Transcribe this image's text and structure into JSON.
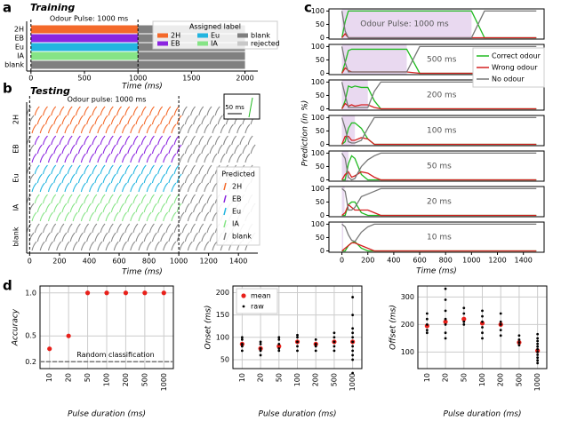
{
  "chart_data": [
    {
      "type": "bar",
      "panel": "a",
      "title": "Training",
      "annotation": "Odour Pulse: 1000 ms",
      "categories": [
        "2H",
        "EB",
        "Eu",
        "IA",
        "blank"
      ],
      "label_duration": [
        1000,
        1000,
        1000,
        1000,
        0
      ],
      "blank_duration": [
        1000,
        1000,
        1000,
        1000,
        2000
      ],
      "colors": [
        "#f4692a",
        "#8b25e0",
        "#22b5e0",
        "#86e486",
        "#7f7f7f"
      ],
      "blank_color": "#808080",
      "pulse_window": [
        0,
        1000
      ],
      "xlim": [
        -40,
        2120
      ],
      "xticks": [
        0,
        500,
        1000,
        1500,
        2000
      ],
      "xlabel": "Time (ms)",
      "legend": {
        "title": "Assigned label",
        "labels": [
          "2H",
          "EB",
          "Eu",
          "IA",
          "blank",
          "rejected"
        ],
        "colors": [
          "#f4692a",
          "#8b25e0",
          "#22b5e0",
          "#86e486",
          "#7f7f7f",
          "#c8c8c8"
        ]
      }
    },
    {
      "type": "raster",
      "panel": "b",
      "title": "Testing",
      "annotation": "Odour pulse: 1000 ms",
      "inset_label": "50 ms",
      "categories": [
        "2H",
        "EB",
        "Eu",
        "IA",
        "blank"
      ],
      "colors": [
        "#f4692a",
        "#8b25e0",
        "#22b5e0",
        "#86e486",
        "#7f7f7f"
      ],
      "pulse_window": [
        0,
        1000
      ],
      "xlim": [
        -20,
        1530
      ],
      "xticks": [
        0,
        200,
        400,
        600,
        800,
        1000,
        1200,
        1400
      ],
      "xlabel": "Time (ms)",
      "legend": {
        "title": "Predicted",
        "labels": [
          "2H",
          "EB",
          "Eu",
          "IA",
          "blank"
        ]
      }
    },
    {
      "type": "line",
      "panel": "c",
      "ylabel": "Prediction (in %)",
      "xlabel": "Time (ms)",
      "xlim": [
        -100,
        1560
      ],
      "xticks": [
        0,
        200,
        400,
        600,
        800,
        1000,
        1200,
        1400
      ],
      "ylim": [
        -5,
        108
      ],
      "yticks": [
        0,
        50,
        100
      ],
      "x": [
        0,
        25,
        50,
        75,
        100,
        150,
        200,
        250,
        300,
        350,
        400,
        500,
        600,
        1000,
        1050,
        1100,
        1500
      ],
      "series": [
        {
          "name": "Correct odour",
          "color": "#22bb22"
        },
        {
          "name": "Wrong odour",
          "color": "#d42020"
        },
        {
          "name": "No odour",
          "color": "#777777"
        }
      ],
      "shade_color": "#e9d9f0",
      "panels": [
        {
          "label": "Odour Pulse: 1000 ms",
          "pulse": 1000,
          "values": [
            [
              0,
              60,
              100,
              100,
              100,
              100,
              100,
              100,
              100,
              100,
              100,
              100,
              100,
              100,
              50,
              0,
              0
            ],
            [
              0,
              15,
              0,
              0,
              0,
              0,
              0,
              0,
              0,
              0,
              0,
              0,
              0,
              0,
              0,
              0,
              0
            ],
            [
              100,
              25,
              0,
              0,
              0,
              0,
              0,
              0,
              0,
              0,
              0,
              0,
              0,
              0,
              50,
              100,
              100
            ]
          ]
        },
        {
          "label": "500 ms",
          "pulse": 500,
          "values": [
            [
              0,
              40,
              85,
              90,
              90,
              90,
              90,
              90,
              90,
              90,
              90,
              90,
              0,
              0,
              0,
              0,
              0
            ],
            [
              0,
              20,
              10,
              5,
              5,
              5,
              5,
              5,
              5,
              5,
              5,
              5,
              0,
              0,
              0,
              0,
              0
            ],
            [
              100,
              40,
              5,
              5,
              5,
              5,
              5,
              5,
              5,
              5,
              5,
              5,
              100,
              100,
              100,
              100,
              100
            ]
          ]
        },
        {
          "label": "200 ms",
          "pulse": 200,
          "values": [
            [
              0,
              30,
              85,
              80,
              85,
              80,
              80,
              30,
              0,
              0,
              0,
              0,
              0,
              0,
              0,
              0,
              0
            ],
            [
              0,
              20,
              10,
              15,
              10,
              15,
              15,
              5,
              0,
              0,
              0,
              0,
              0,
              0,
              0,
              0,
              0
            ],
            [
              100,
              50,
              5,
              5,
              5,
              5,
              5,
              65,
              100,
              100,
              100,
              100,
              100,
              100,
              100,
              100,
              100
            ]
          ]
        },
        {
          "label": "100 ms",
          "pulse": 100,
          "values": [
            [
              0,
              10,
              60,
              80,
              80,
              60,
              20,
              0,
              0,
              0,
              0,
              0,
              0,
              0,
              0,
              0,
              0
            ],
            [
              0,
              30,
              30,
              15,
              15,
              25,
              20,
              0,
              0,
              0,
              0,
              0,
              0,
              0,
              0,
              0,
              0
            ],
            [
              100,
              60,
              10,
              5,
              5,
              15,
              60,
              100,
              100,
              100,
              100,
              100,
              100,
              100,
              100,
              100,
              100
            ]
          ]
        },
        {
          "label": "50 ms",
          "pulse": 50,
          "values": [
            [
              0,
              0,
              60,
              90,
              80,
              20,
              0,
              0,
              0,
              0,
              0,
              0,
              0,
              0,
              0,
              0,
              0
            ],
            [
              0,
              20,
              30,
              10,
              15,
              30,
              25,
              10,
              0,
              0,
              0,
              0,
              0,
              0,
              0,
              0,
              0
            ],
            [
              100,
              80,
              10,
              0,
              5,
              50,
              75,
              90,
              100,
              100,
              100,
              100,
              100,
              100,
              100,
              100,
              100
            ]
          ]
        },
        {
          "label": "20 ms",
          "pulse": 20,
          "values": [
            [
              0,
              0,
              40,
              50,
              50,
              10,
              0,
              0,
              0,
              0,
              0,
              0,
              0,
              0,
              0,
              0,
              0
            ],
            [
              0,
              10,
              40,
              30,
              20,
              20,
              20,
              10,
              0,
              0,
              0,
              0,
              0,
              0,
              0,
              0,
              0
            ],
            [
              100,
              90,
              20,
              20,
              30,
              70,
              80,
              90,
              100,
              100,
              100,
              100,
              100,
              100,
              100,
              100,
              100
            ]
          ]
        },
        {
          "label": "10 ms",
          "pulse": 10,
          "values": [
            [
              0,
              0,
              20,
              30,
              35,
              10,
              0,
              0,
              0,
              0,
              0,
              0,
              0,
              0,
              0,
              0,
              0
            ],
            [
              0,
              10,
              20,
              30,
              30,
              20,
              10,
              0,
              0,
              0,
              0,
              0,
              0,
              0,
              0,
              0,
              0
            ],
            [
              100,
              90,
              60,
              40,
              35,
              70,
              90,
              100,
              100,
              100,
              100,
              100,
              100,
              100,
              100,
              100,
              100
            ]
          ]
        }
      ]
    },
    {
      "type": "scatter",
      "panel": "d",
      "categories": [
        "10",
        "20",
        "50",
        "100",
        "200",
        "500",
        "1000"
      ],
      "xlabel": "Pulse duration (ms)",
      "ylabel": "Accuracy",
      "ylim": [
        0.12,
        1.08
      ],
      "yticks": [
        0.2,
        0.5,
        {
          "value": 1,
          "label": "1.0"
        }
      ],
      "grid": true,
      "chance_level": 0.2,
      "annotation": "Random classification",
      "series": [
        {
          "name": "mean",
          "color": "#e8201a",
          "values": [
            0.35,
            0.5,
            1,
            1,
            1,
            1,
            1
          ]
        }
      ]
    },
    {
      "type": "scatter",
      "categories": [
        "10",
        "20",
        "50",
        "100",
        "200",
        "500",
        "1000"
      ],
      "xlabel": "Pulse duration (ms)",
      "ylabel": "Onset (ms)",
      "ylim": [
        30,
        215
      ],
      "yticks": [
        50,
        100,
        150,
        200
      ],
      "grid": true,
      "legend": true,
      "series": [
        {
          "name": "mean",
          "color": "#e8201a",
          "values": [
            85,
            75,
            80,
            90,
            85,
            90,
            90
          ]
        },
        {
          "name": "raw",
          "color": "#000000",
          "values": [
            [
              70,
              80,
              85,
              95,
              100
            ],
            [
              60,
              70,
              75,
              85,
              90
            ],
            [
              70,
              75,
              85,
              95,
              100
            ],
            [
              70,
              80,
              90,
              100,
              105
            ],
            [
              70,
              80,
              85,
              95
            ],
            [
              70,
              80,
              90,
              100,
              110
            ],
            [
              20,
              50,
              60,
              70,
              80,
              90,
              100,
              110,
              120,
              150,
              190
            ]
          ]
        }
      ]
    },
    {
      "type": "scatter",
      "categories": [
        "10",
        "20",
        "50",
        "100",
        "200",
        "500",
        "1000"
      ],
      "xlabel": "Pulse duration (ms)",
      "ylabel": "Offset (ms)",
      "ylim": [
        40,
        340
      ],
      "yticks": [
        100,
        200,
        300
      ],
      "grid": true,
      "series": [
        {
          "name": "mean",
          "color": "#e8201a",
          "values": [
            195,
            210,
            220,
            205,
            200,
            135,
            105
          ]
        },
        {
          "name": "raw",
          "color": "#000000",
          "values": [
            [
              170,
              180,
              200,
              220,
              240
            ],
            [
              150,
              170,
              200,
              220,
              250,
              290,
              330
            ],
            [
              200,
              210,
              240,
              260
            ],
            [
              150,
              170,
              190,
              210,
              230,
              250
            ],
            [
              160,
              180,
              200,
              210,
              240
            ],
            [
              125,
              135,
              145,
              160
            ],
            [
              60,
              70,
              80,
              90,
              100,
              110,
              120,
              130,
              140,
              150,
              165
            ]
          ]
        }
      ]
    }
  ]
}
